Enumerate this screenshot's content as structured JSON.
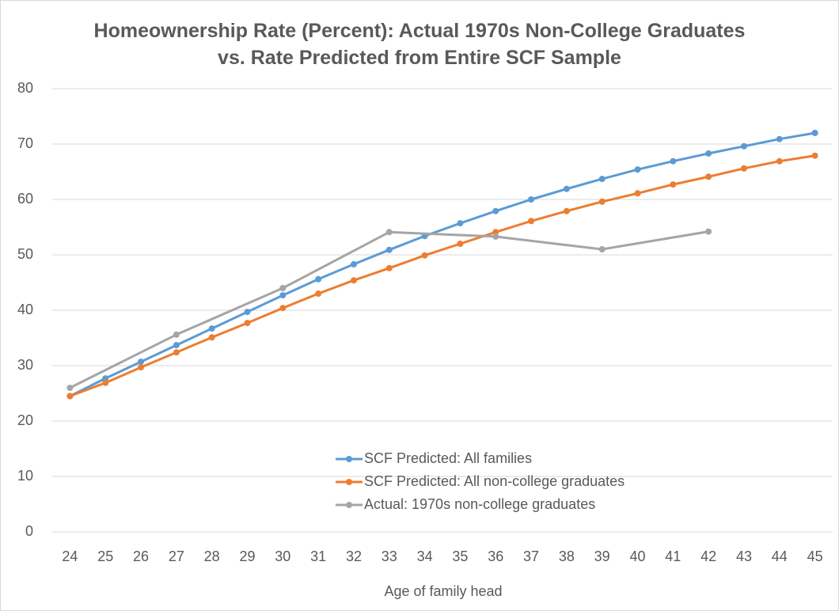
{
  "chart_data": {
    "type": "line",
    "title": "Homeownership Rate (Percent): Actual 1970s Non-College Graduates vs. Rate Predicted from Entire SCF Sample",
    "x_label": "Age of family head",
    "categories": [
      24,
      25,
      26,
      27,
      28,
      29,
      30,
      31,
      32,
      33,
      34,
      35,
      36,
      37,
      38,
      39,
      40,
      41,
      42,
      43,
      44,
      45
    ],
    "ylim": [
      0,
      80
    ],
    "yticks": [
      0,
      10,
      20,
      30,
      40,
      50,
      60,
      70,
      80
    ],
    "grid": true,
    "series": [
      {
        "name": "SCF Predicted: All families",
        "color": "#5b9bd5",
        "values": [
          24.5,
          27.7,
          30.7,
          33.7,
          36.7,
          39.7,
          42.7,
          45.6,
          48.3,
          50.9,
          53.4,
          55.7,
          57.9,
          60.0,
          61.9,
          63.7,
          65.4,
          66.9,
          68.3,
          69.6,
          70.9,
          72.0
        ]
      },
      {
        "name": "SCF Predicted: All non-college graduates",
        "color": "#ed7d31",
        "values": [
          24.5,
          26.9,
          29.7,
          32.4,
          35.1,
          37.7,
          40.4,
          43.0,
          45.4,
          47.6,
          49.9,
          52.0,
          54.1,
          56.1,
          57.9,
          59.6,
          61.1,
          62.7,
          64.1,
          65.6,
          66.9,
          67.9
        ]
      },
      {
        "name": "Actual: 1970s non-college graduates",
        "color": "#a5a5a5",
        "x": [
          24,
          27,
          30,
          33,
          36,
          39,
          42
        ],
        "values": [
          26.0,
          35.6,
          44.0,
          54.1,
          53.3,
          51.0,
          54.2
        ]
      }
    ]
  }
}
